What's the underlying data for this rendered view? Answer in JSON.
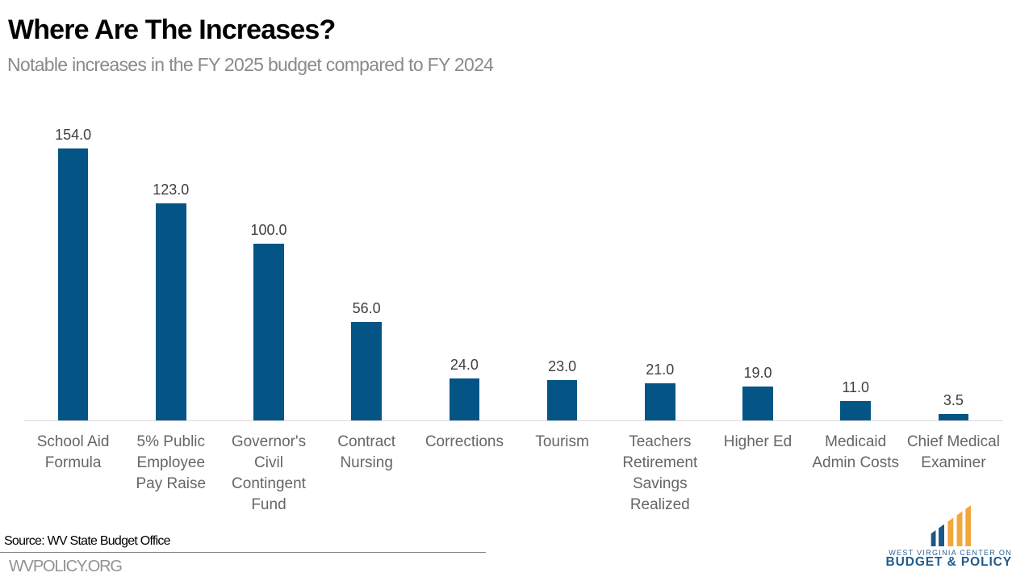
{
  "header": {
    "title": "Where Are The Increases?",
    "subtitle": "Notable increases in the FY 2025 budget compared to FY 2024"
  },
  "chart_data": {
    "type": "bar",
    "title": "Where Are The Increases?",
    "subtitle": "Notable increases in the FY 2025 budget compared to FY 2024",
    "categories": [
      "School Aid Formula",
      "5% Public Employee Pay Raise",
      "Governor's Civil Contingent Fund",
      "Contract Nursing",
      "Corrections",
      "Tourism",
      "Teachers Retirement Savings Realized",
      "Higher Ed",
      "Medicaid Admin Costs",
      "Chief Medical Examiner"
    ],
    "values": [
      154.0,
      123.0,
      100.0,
      56.0,
      24.0,
      23.0,
      21.0,
      19.0,
      11.0,
      3.5
    ],
    "value_labels": [
      "154.0",
      "123.0",
      "100.0",
      "56.0",
      "24.0",
      "23.0",
      "21.0",
      "19.0",
      "11.0",
      "3.5"
    ],
    "category_labels_wrapped": [
      "School Aid\nFormula",
      "5% Public\nEmployee\nPay Raise",
      "Governor's\nCivil\nContingent\nFund",
      "Contract\nNursing",
      "Corrections",
      "Tourism",
      "Teachers\nRetirement\nSavings\nRealized",
      "Higher Ed",
      "Medicaid\nAdmin Costs",
      "Chief Medical\nExaminer"
    ],
    "bar_color": "#045586",
    "axis_line_color": "#d9d9d9",
    "grid": false,
    "legend": false,
    "xlabel": "",
    "ylabel": ""
  },
  "footer": {
    "source": "Source: WV State Budget Office",
    "website": "WVPOLICY.ORG"
  },
  "logo": {
    "line1": "WEST VIRGINIA CENTER ON",
    "line2": "BUDGET & POLICY",
    "blue": "#1d5787",
    "gold": "#f2a83c"
  }
}
